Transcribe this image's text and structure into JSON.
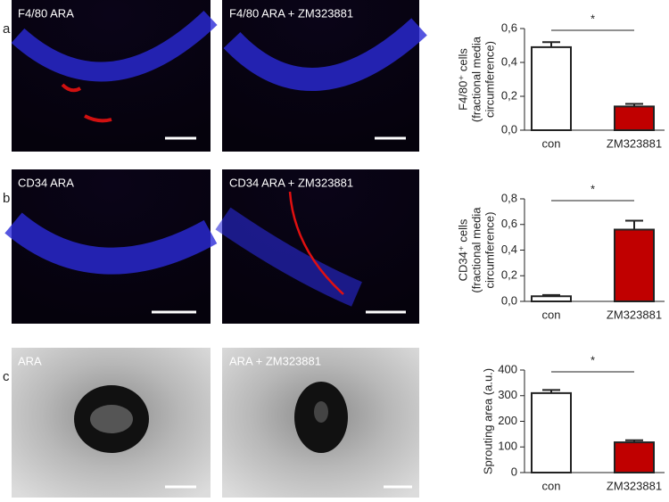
{
  "panels": [
    {
      "letter": "a",
      "images": [
        "F4/80 ARA",
        "F4/80 ARA + ZM323881"
      ]
    },
    {
      "letter": "b",
      "images": [
        "CD34 ARA",
        "CD34 ARA + ZM323881"
      ]
    },
    {
      "letter": "c",
      "images": [
        "ARA",
        "ARA + ZM323881"
      ]
    }
  ],
  "chart_data": [
    {
      "type": "bar",
      "y_label": [
        "F4/80⁺ cells",
        "(fractional media",
        "circumference)"
      ],
      "categories": [
        "con",
        "ZM323881"
      ],
      "values": [
        0.49,
        0.14
      ],
      "errors": [
        0.03,
        0.015
      ],
      "colors": [
        "#ffffff",
        "#c00000"
      ],
      "annotation": "*",
      "ylim": [
        0,
        0.6
      ],
      "yticks": [
        {
          "value": 0,
          "label": "0,0"
        },
        {
          "value": 0.2,
          "label": "0,2"
        },
        {
          "value": 0.4,
          "label": "0,4"
        },
        {
          "value": 0.6,
          "label": "0,6"
        }
      ]
    },
    {
      "type": "bar",
      "y_label": [
        "CD34⁺ cells",
        "(fractional media",
        "circumference)"
      ],
      "categories": [
        "con",
        "ZM323881"
      ],
      "values": [
        0.04,
        0.56
      ],
      "errors": [
        0.01,
        0.07
      ],
      "colors": [
        "#ffffff",
        "#c00000"
      ],
      "annotation": "*",
      "ylim": [
        0,
        0.8
      ],
      "yticks": [
        {
          "value": 0,
          "label": "0,0"
        },
        {
          "value": 0.2,
          "label": "0,2"
        },
        {
          "value": 0.4,
          "label": "0,4"
        },
        {
          "value": 0.6,
          "label": "0,6"
        },
        {
          "value": 0.8,
          "label": "0,8"
        }
      ]
    },
    {
      "type": "bar",
      "y_label": [
        "Sprouting area (a.u.)"
      ],
      "categories": [
        "con",
        "ZM323881"
      ],
      "values": [
        310,
        118
      ],
      "errors": [
        12,
        8
      ],
      "colors": [
        "#ffffff",
        "#c00000"
      ],
      "annotation": "*",
      "ylim": [
        0,
        400
      ],
      "yticks": [
        0,
        100,
        200,
        300,
        400
      ]
    }
  ]
}
